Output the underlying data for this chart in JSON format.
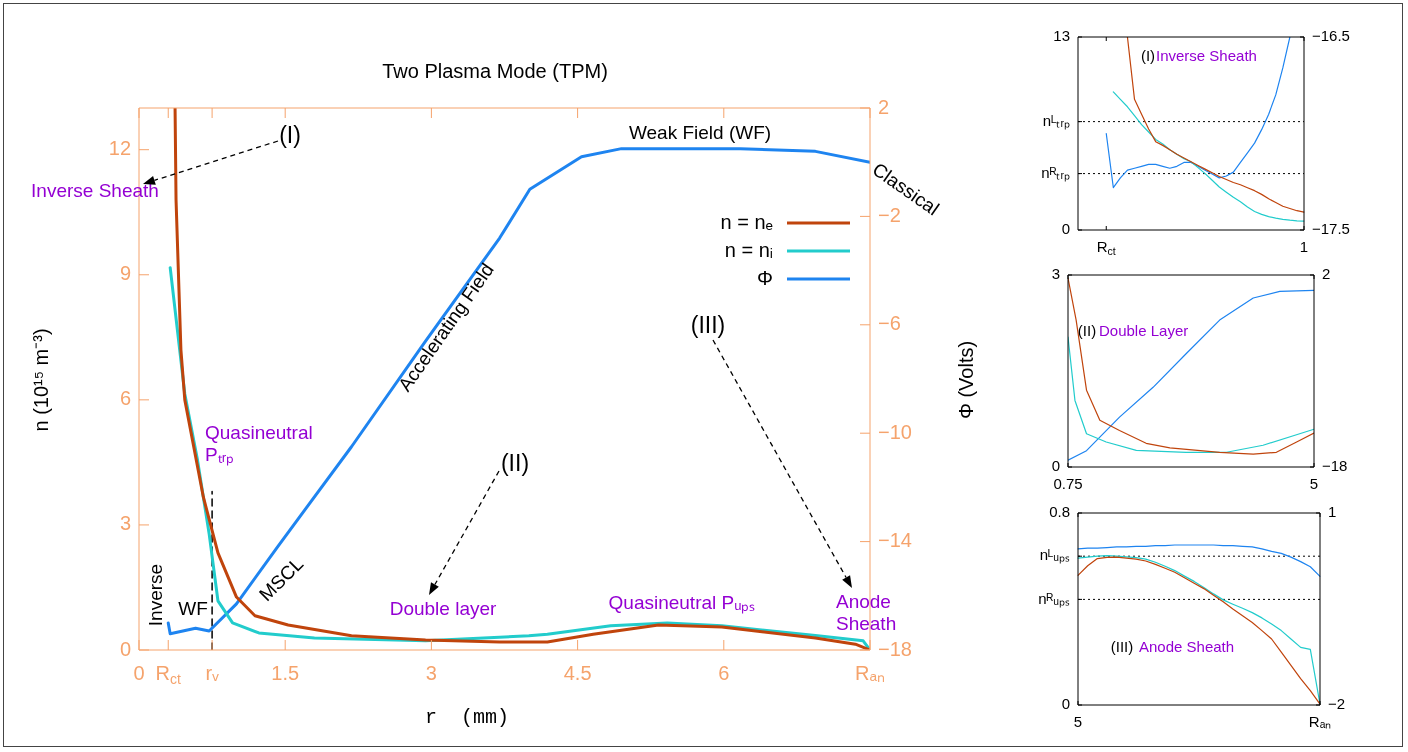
{
  "chart_data": [
    {
      "type": "line",
      "title": "Two Plasma Mode (TPM)",
      "xlabel": "r  (mm)",
      "ylabel": "n (10¹⁵ m⁻³)",
      "y2label": "Φ (Volts)",
      "xlim": [
        0,
        7.5
      ],
      "xticks": [
        0,
        {
          "value": 0.3,
          "label": "R$_{ct}$"
        },
        {
          "value": 0.75,
          "label": "rᵥ"
        },
        1.5,
        3,
        4.5,
        6,
        {
          "value": 7.5,
          "label": "Rₐₙ"
        }
      ],
      "ylim": [
        0,
        13
      ],
      "yticks": [
        0,
        3,
        6,
        9,
        12
      ],
      "y2lim": [
        -18,
        2
      ],
      "y2ticks": [
        -18,
        -14,
        -10,
        -6,
        -2,
        2
      ],
      "legend": "top right",
      "series": [
        {
          "name": "n = nₑ",
          "color": "#c0440c",
          "x": [
            0.37,
            0.38,
            0.43,
            0.47,
            0.66,
            0.81,
            1.0,
            1.19,
            1.53,
            2.18,
            2.94,
            3.7,
            4.0,
            4.19,
            4.66,
            5.33,
            5.98,
            6.94,
            7.35,
            7.5
          ],
          "values": [
            13,
            10.8,
            7.2,
            6.0,
            3.67,
            2.33,
            1.27,
            0.82,
            0.6,
            0.34,
            0.24,
            0.19,
            0.19,
            0.19,
            0.38,
            0.6,
            0.55,
            0.29,
            0.14,
            0
          ]
        },
        {
          "name": "n = nᵢ",
          "color": "#22cccc",
          "x": [
            0.32,
            0.47,
            0.6,
            0.72,
            0.81,
            0.96,
            1.23,
            1.8,
            2.94,
            4.0,
            4.19,
            4.84,
            5.42,
            5.98,
            6.94,
            7.43,
            7.5
          ],
          "values": [
            9.17,
            6.14,
            4.56,
            2.78,
            1.18,
            0.65,
            0.41,
            0.29,
            0.22,
            0.34,
            0.38,
            0.58,
            0.65,
            0.58,
            0.35,
            0.22,
            0
          ]
        },
        {
          "name": "Φ",
          "color": "#1e84f0",
          "axis": "y2",
          "x": [
            0.3,
            0.32,
            0.58,
            0.72,
            1.0,
            1.42,
            2.18,
            2.94,
            3.7,
            4.01,
            4.54,
            4.95,
            6.17,
            6.94,
            7.5
          ],
          "values": [
            -17.0,
            -17.4,
            -17.2,
            -17.3,
            -16.3,
            -14.2,
            -10.5,
            -6.6,
            -2.8,
            -1.0,
            0.2,
            0.5,
            0.5,
            0.4,
            0.0
          ]
        },
        {
          "type": "line",
          "color": "#000000",
          "line_style": "dashed",
          "x": [
            0.75,
            0.75
          ],
          "values": [
            0,
            3.8
          ]
        }
      ],
      "annotations": [
        "(I)",
        "Inverse Sheath",
        "Weak Field (WF)",
        "Classical",
        "Accelerating Field",
        "(III)",
        "Quasineutral Pₜᵣₚ",
        "(II)",
        "MSCL",
        "Double layer",
        "Quasineutral Pᵤₚₛ",
        "Anode Sheath",
        "Inverse",
        "WF"
      ]
    },
    {
      "type": "line",
      "categories": [
        null,
        null,
        null,
        null,
        "R$_{ct}$",
        null,
        null,
        null,
        null,
        null,
        null,
        null,
        null,
        null,
        null,
        null,
        null,
        null,
        null,
        null,
        null,
        null,
        null,
        null,
        null,
        null,
        null,
        null,
        null,
        null,
        null,
        null,
        "1"
      ],
      "ylim": [
        0,
        13
      ],
      "yticks": [
        0,
        {
          "value": 7.3,
          "label": "nᴸₜᵣₚ"
        },
        {
          "value": 3.8,
          "label": "nᴿₜᵣₚ"
        },
        13
      ],
      "y2lim": [
        -17.5,
        -16.5
      ],
      "y2ticks": [
        -17.5,
        -16.5
      ],
      "ref_lines": [
        {
          "axis": "y",
          "value": 7.3,
          "color": "#000000",
          "line_style": "dotted"
        },
        {
          "axis": "y",
          "value": 3.8,
          "color": "#000000",
          "line_style": "dotted"
        }
      ],
      "series": [
        {
          "color": "#c0440c",
          "values": [
            null,
            null,
            null,
            null,
            null,
            null,
            null,
            13,
            8.8,
            7.8,
            6.8,
            5.95,
            5.7,
            5.4,
            5.1,
            4.85,
            4.6,
            4.35,
            4.1,
            3.85,
            3.6,
            3.4,
            3.2,
            3.05,
            2.85,
            2.65,
            2.4,
            2.1,
            1.85,
            1.6,
            1.45,
            1.3,
            1.2
          ]
        },
        {
          "color": "#22cccc",
          "values": [
            null,
            null,
            null,
            null,
            null,
            9.3,
            8.8,
            8.3,
            7.7,
            7.1,
            6.6,
            6.1,
            5.8,
            5.4,
            5.1,
            4.8,
            4.6,
            4.2,
            3.8,
            3.35,
            2.9,
            2.55,
            2.2,
            1.9,
            1.55,
            1.25,
            1.05,
            0.9,
            0.8,
            0.72,
            0.66,
            0.62,
            0.6
          ]
        },
        {
          "color": "#1e84f0",
          "axis": "y2",
          "values": [
            null,
            null,
            null,
            null,
            -17.0,
            -17.28,
            -17.23,
            -17.19,
            -17.18,
            -17.17,
            -17.16,
            -17.16,
            -17.17,
            -17.18,
            -17.17,
            -17.15,
            -17.15,
            -17.17,
            -17.19,
            -17.21,
            -17.23,
            -17.22,
            -17.2,
            -17.15,
            -17.1,
            -17.05,
            -16.98,
            -16.9,
            -16.8,
            -16.66,
            -16.5,
            null,
            null
          ]
        }
      ],
      "annotations": [
        "(I)",
        "Inverse Sheath"
      ]
    },
    {
      "type": "line",
      "xlim": [
        0.75,
        5
      ],
      "xticks": [
        0.75,
        5
      ],
      "ylim": [
        0,
        3
      ],
      "yticks": [
        0,
        3
      ],
      "y2lim": [
        -18,
        2
      ],
      "y2ticks": [
        -18,
        2
      ],
      "series": [
        {
          "color": "#c0440c",
          "x": [
            0.75,
            0.89,
            1.07,
            1.3,
            1.64,
            2.1,
            2.51,
            3.37,
            3.95,
            4.35,
            4.7,
            5.0
          ],
          "values": [
            2.95,
            2.3,
            1.2,
            0.73,
            0.57,
            0.37,
            0.3,
            0.23,
            0.2,
            0.23,
            0.39,
            0.53
          ]
        },
        {
          "color": "#22cccc",
          "x": [
            0.75,
            0.87,
            1.07,
            1.41,
            1.93,
            2.79,
            3.49,
            4.12,
            5.0
          ],
          "values": [
            2.03,
            1.04,
            0.52,
            0.39,
            0.26,
            0.23,
            0.23,
            0.34,
            0.59
          ]
        },
        {
          "color": "#1e84f0",
          "axis": "y2",
          "x": [
            0.75,
            1.07,
            1.64,
            2.22,
            2.79,
            3.37,
            3.95,
            4.41,
            5.0
          ],
          "values": [
            -17.3,
            -16.3,
            -12.8,
            -9.7,
            -6.2,
            -2.7,
            -0.4,
            0.3,
            0.4
          ]
        }
      ],
      "annotations": [
        "(II)",
        "Double Layer"
      ]
    },
    {
      "type": "line",
      "categories": [
        "5",
        null,
        null,
        null,
        null,
        null,
        null,
        null,
        null,
        null,
        null,
        null,
        null,
        null,
        null,
        null,
        null,
        null,
        null,
        null,
        null,
        null,
        null,
        null,
        null,
        "Rₐₙ"
      ],
      "ylim": [
        0,
        0.8
      ],
      "yticks": [
        0,
        {
          "value": 0.62,
          "label": "nᴸᵤₚₛ"
        },
        {
          "value": 0.44,
          "label": "nᴿᵤₚₛ"
        },
        0.8
      ],
      "y2lim": [
        -2,
        1
      ],
      "y2ticks": [
        -2,
        1
      ],
      "ref_lines": [
        {
          "axis": "y",
          "value": 0.62,
          "color": "#000000",
          "line_style": "dotted"
        },
        {
          "axis": "y",
          "value": 0.44,
          "color": "#000000",
          "line_style": "dotted"
        }
      ],
      "series": [
        {
          "color": "#1e84f0",
          "axis": "y2",
          "values": [
            0.44,
            0.45,
            0.45,
            0.46,
            0.47,
            0.47,
            0.48,
            0.48,
            0.49,
            0.49,
            0.5,
            0.5,
            0.5,
            0.5,
            0.5,
            0.49,
            0.49,
            0.48,
            0.47,
            0.44,
            0.4,
            0.37,
            0.31,
            0.24,
            0.16,
            0.01
          ]
        },
        {
          "color": "#c0440c",
          "values": [
            0.54,
            0.58,
            0.61,
            0.615,
            0.616,
            0.612,
            0.608,
            0.6,
            0.586,
            0.57,
            0.553,
            0.53,
            0.507,
            0.485,
            0.457,
            0.43,
            0.4,
            0.372,
            0.344,
            0.31,
            0.275,
            0.22,
            0.165,
            0.11,
            0.06,
            0.004
          ]
        },
        {
          "color": "#22cccc",
          "values": [
            0.612,
            0.616,
            0.62,
            0.622,
            0.62,
            0.617,
            0.614,
            0.608,
            0.595,
            0.578,
            0.56,
            0.537,
            0.515,
            0.49,
            0.463,
            0.438,
            0.42,
            0.403,
            0.385,
            0.363,
            0.337,
            0.31,
            0.275,
            0.24,
            0.232,
            0.004
          ]
        }
      ],
      "annotations": [
        "(III)",
        "Anode Sheath"
      ]
    }
  ]
}
